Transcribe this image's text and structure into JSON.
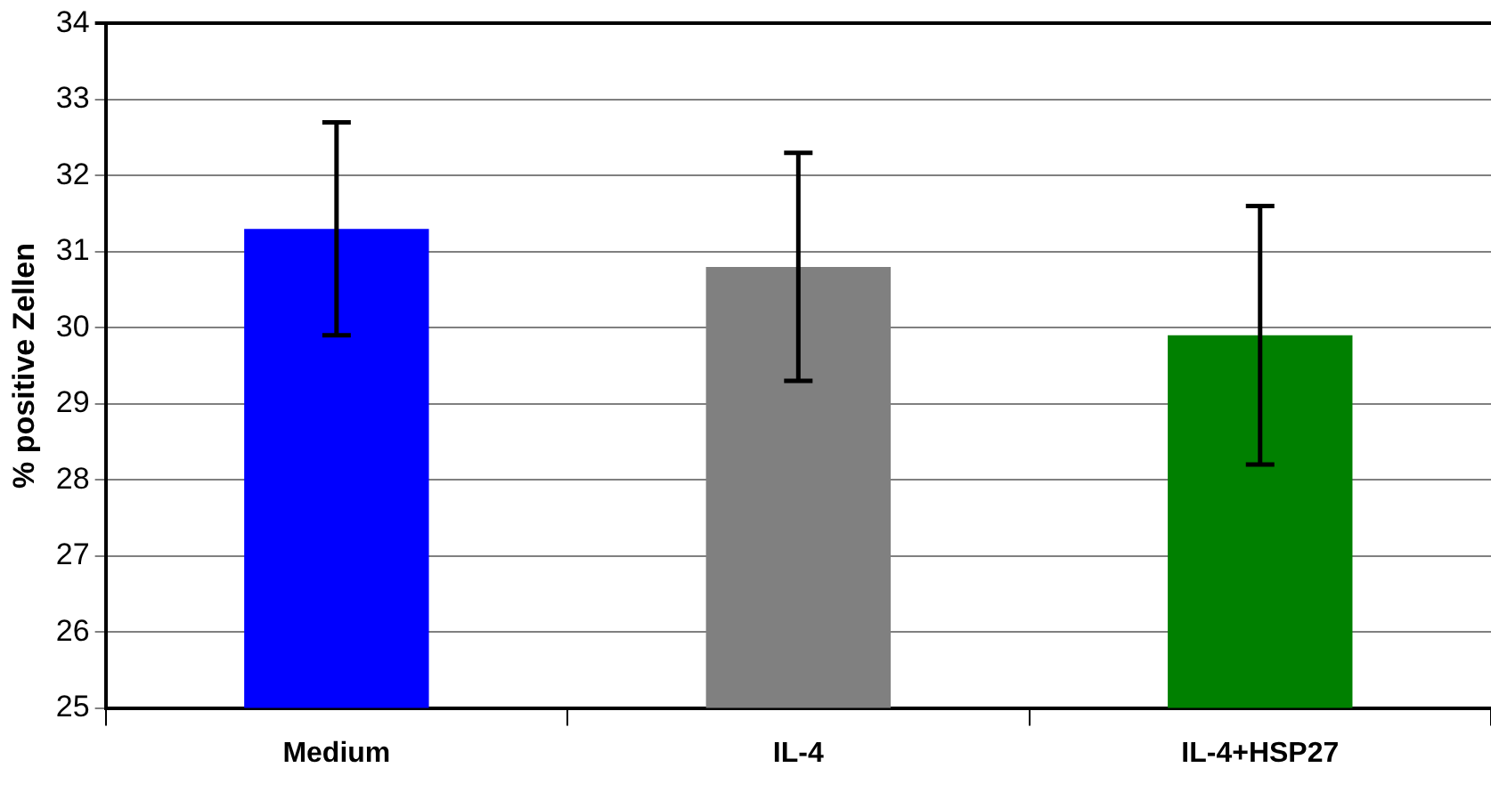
{
  "chart_data": {
    "type": "bar",
    "ylabel": "% positive Zellen",
    "categories": [
      "Medium",
      "IL-4",
      "IL-4+HSP27"
    ],
    "values": [
      31.3,
      30.8,
      29.9
    ],
    "errors": [
      1.4,
      1.5,
      1.7
    ],
    "colors": [
      "#0000ff",
      "#808080",
      "#008000"
    ],
    "ylim": [
      25,
      34
    ],
    "yticks": [
      25,
      26,
      27,
      28,
      29,
      30,
      31,
      32,
      33,
      34
    ],
    "grid": "y",
    "legend": false
  }
}
